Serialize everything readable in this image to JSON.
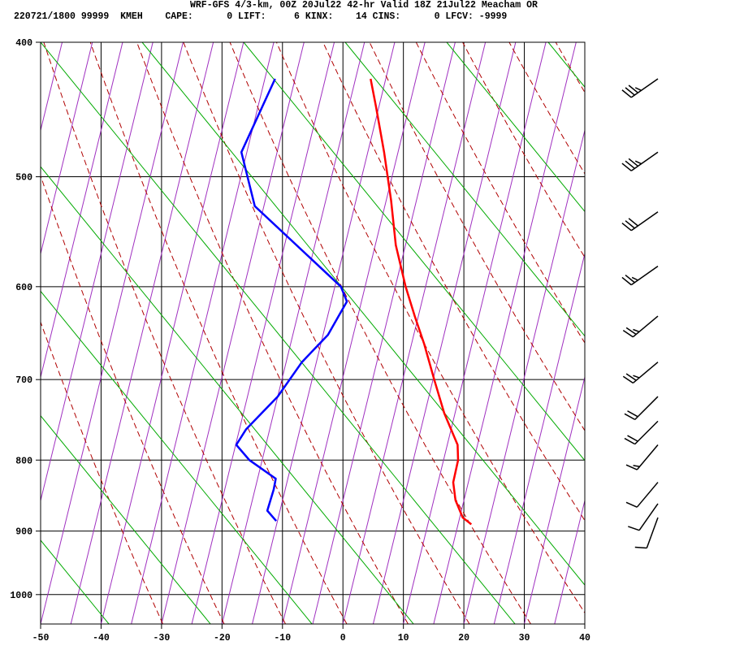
{
  "header": {
    "line1": "WRF-GFS 4/3-km, 00Z 20Jul22 42-hr Valid 18Z 21Jul22 Meacham OR",
    "line2": "220721/1800 99999  KMEH    CAPE:      0 LIFT:     6 KINX:    14 CINS:      0 LFCV: -9999"
  },
  "chart_data": {
    "type": "line",
    "title": "WRF-GFS 4/3-km, 00Z 20Jul22 42-hr Valid 18Z 21Jul22 Meacham OR",
    "subtitle": "220721/1800 99999  KMEH    CAPE:      0 LIFT:     6 KINX:    14 CINS:      0 LFCV: -9999",
    "xlabel": "",
    "ylabel": "",
    "x_ticks": [
      "-50",
      "-40",
      "-30",
      "-20",
      "-10",
      "0",
      "10",
      "20",
      "30",
      "40"
    ],
    "y_ticks": [
      "400",
      "500",
      "600",
      "700",
      "800",
      "900",
      "1000"
    ],
    "xlim": [
      -50,
      40
    ],
    "ylim_hpa": [
      1050,
      400
    ],
    "y_scale": "log-pressure",
    "grid": true,
    "colors": {
      "temperature": "#ff0000",
      "dewpoint": "#0000ff",
      "dry_adiabat": "#b00000",
      "moist_adiabat": "#00aa00",
      "isotherm": "#a030c0",
      "grid": "#000000",
      "barbs": "#000000"
    },
    "series": [
      {
        "key": "temperature",
        "p": [
          425,
          445,
          480,
          520,
          560,
          600,
          630,
          660,
          700,
          740,
          780,
          800,
          830,
          855,
          880,
          890
        ],
        "t": [
          -17.5,
          -15.5,
          -12.3,
          -9.2,
          -6.6,
          -3.3,
          -0.6,
          2.1,
          5.2,
          8.2,
          11.7,
          12.4,
          12.5,
          13.6,
          15.5,
          17.2
        ]
      },
      {
        "key": "dewpoint",
        "p": [
          425,
          480,
          525,
          600,
          615,
          650,
          680,
          720,
          760,
          780,
          800,
          825,
          840,
          870,
          885
        ],
        "t": [
          -33.3,
          -35.9,
          -31.5,
          -14.0,
          -12.4,
          -14.2,
          -17.4,
          -20.0,
          -23.9,
          -24.9,
          -22.1,
          -17.0,
          -16.9,
          -17.1,
          -15.2
        ]
      }
    ],
    "wind_barbs": [
      {
        "p": 425,
        "dir_deg": 235,
        "speed_kt": 35
      },
      {
        "p": 480,
        "dir_deg": 235,
        "speed_kt": 35
      },
      {
        "p": 530,
        "dir_deg": 235,
        "speed_kt": 30
      },
      {
        "p": 580,
        "dir_deg": 235,
        "speed_kt": 25
      },
      {
        "p": 630,
        "dir_deg": 230,
        "speed_kt": 25
      },
      {
        "p": 680,
        "dir_deg": 230,
        "speed_kt": 25
      },
      {
        "p": 720,
        "dir_deg": 225,
        "speed_kt": 20
      },
      {
        "p": 750,
        "dir_deg": 225,
        "speed_kt": 20
      },
      {
        "p": 780,
        "dir_deg": 220,
        "speed_kt": 15
      },
      {
        "p": 830,
        "dir_deg": 220,
        "speed_kt": 10
      },
      {
        "p": 860,
        "dir_deg": 215,
        "speed_kt": 10
      },
      {
        "p": 880,
        "dir_deg": 200,
        "speed_kt": 10
      }
    ]
  }
}
